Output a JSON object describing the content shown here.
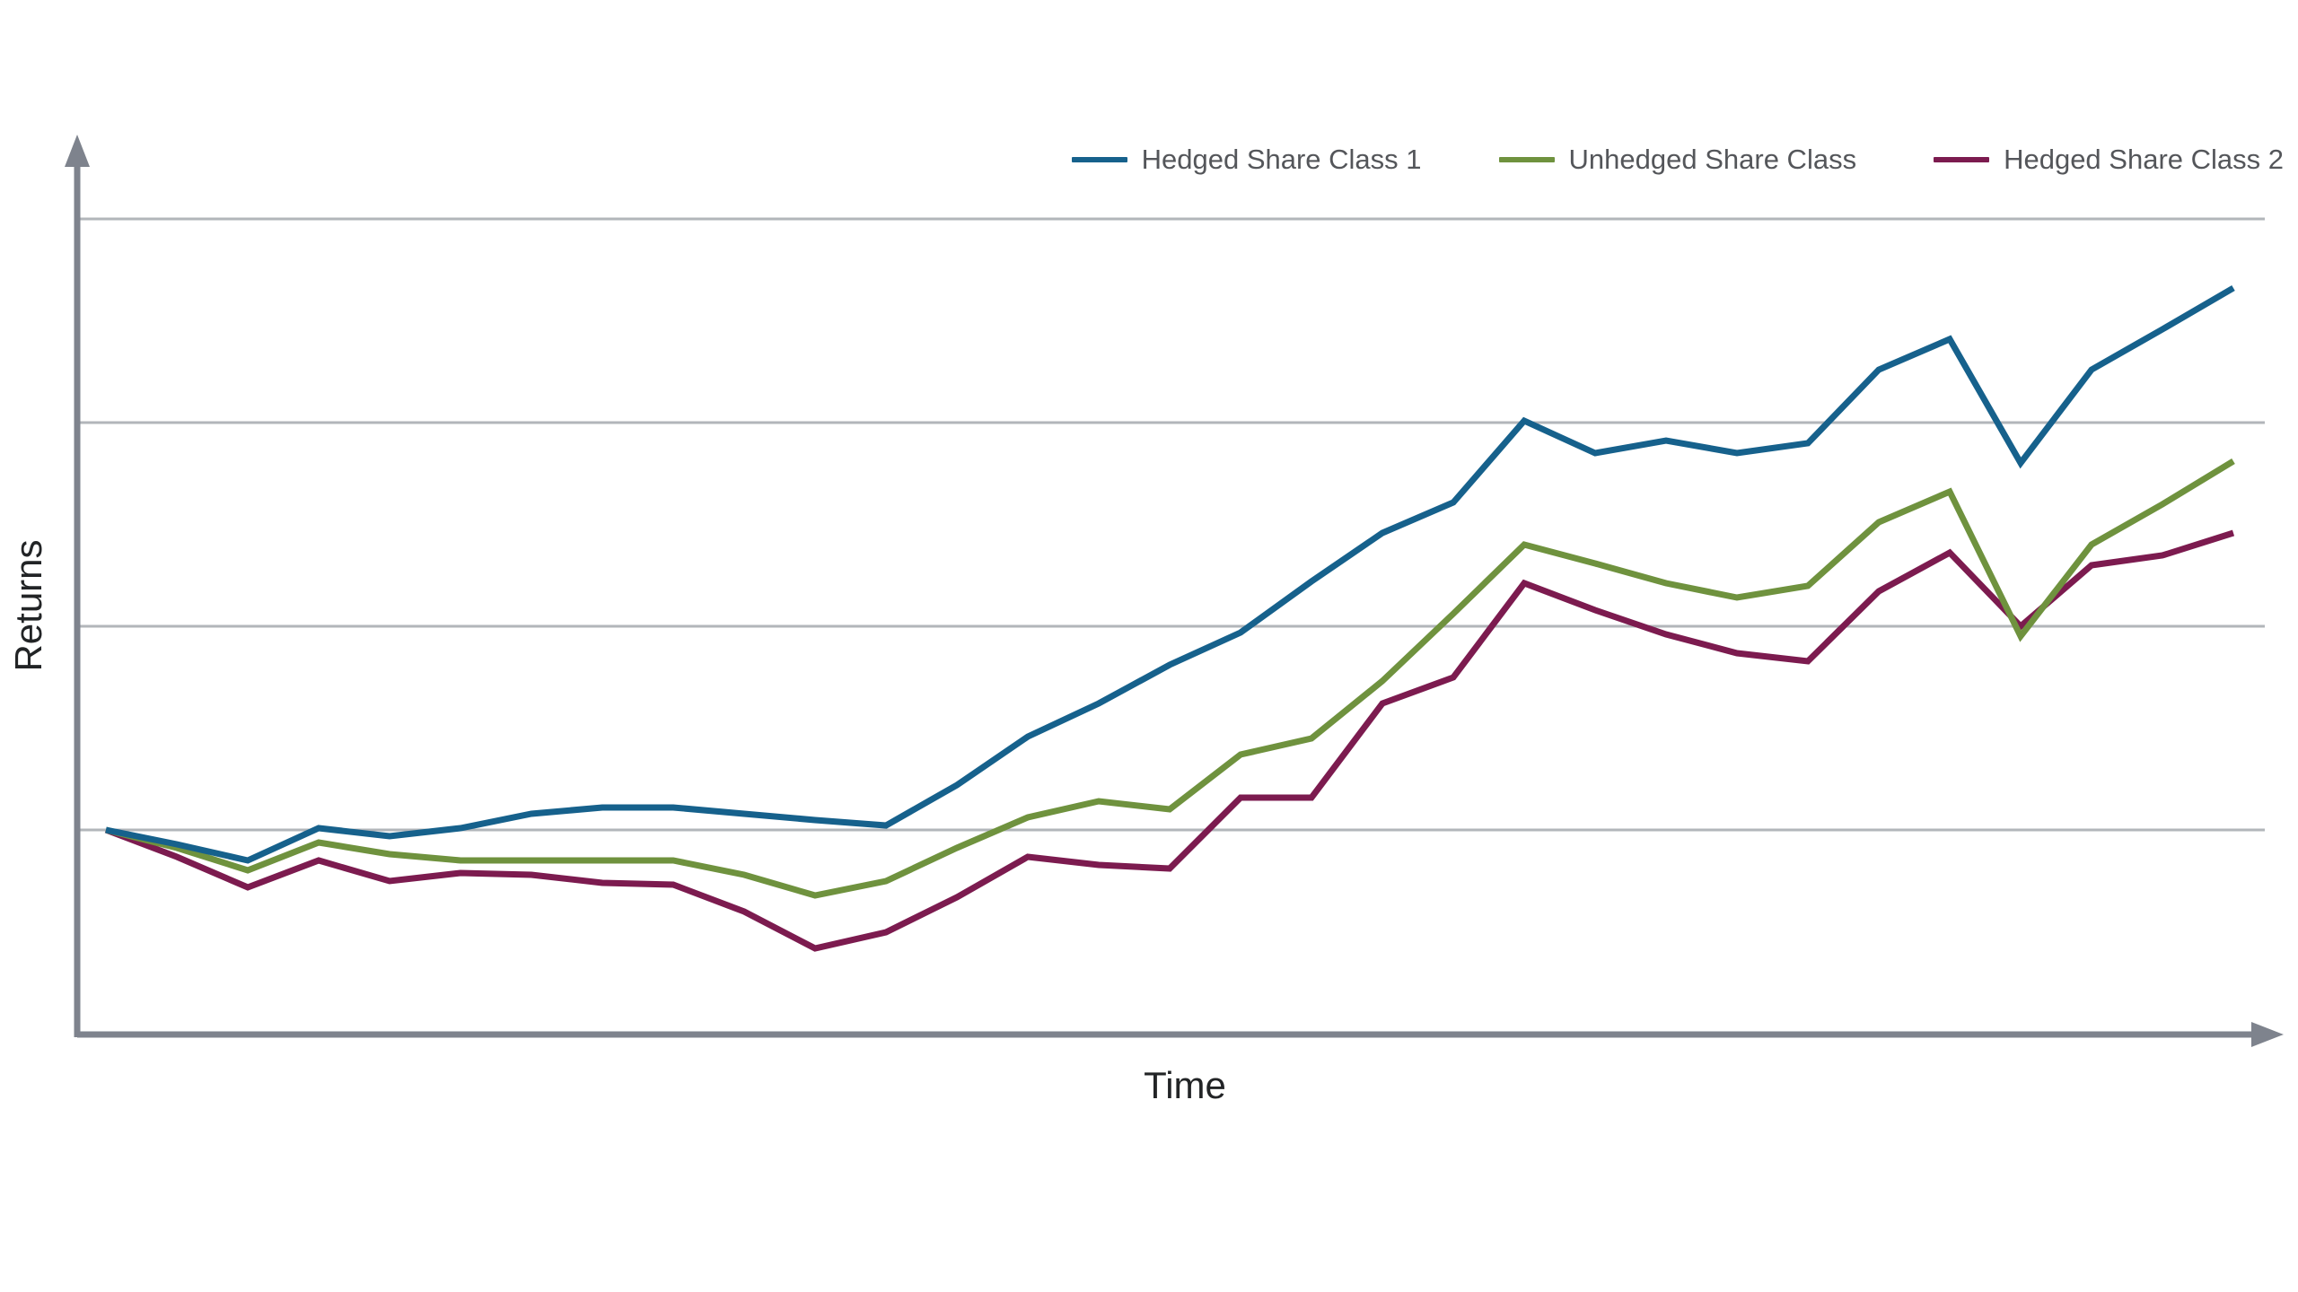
{
  "chart_data": {
    "type": "line",
    "title": "",
    "xlabel": "Time",
    "ylabel": "Returns",
    "x": [
      0,
      1,
      2,
      3,
      4,
      5,
      6,
      7,
      8,
      9,
      10,
      11,
      12,
      13,
      14,
      15,
      16,
      17,
      18,
      19,
      20,
      21,
      22,
      23,
      24,
      25,
      26,
      27,
      28,
      29,
      30
    ],
    "series": [
      {
        "name": "Hedged Share Class 1",
        "color": "#16618c",
        "values": [
          0,
          -0.07,
          -0.15,
          0.01,
          -0.03,
          0.01,
          0.08,
          0.11,
          0.11,
          0.08,
          0.05,
          0.02,
          0.22,
          0.46,
          0.62,
          0.81,
          0.97,
          1.22,
          1.46,
          1.61,
          2.01,
          1.85,
          1.91,
          1.85,
          1.9,
          2.26,
          2.41,
          1.8,
          2.26,
          2.46,
          2.66
        ]
      },
      {
        "name": "Unhedged Share Class",
        "color": "#6f923e",
        "values": [
          0,
          -0.09,
          -0.2,
          -0.06,
          -0.12,
          -0.15,
          -0.15,
          -0.15,
          -0.15,
          -0.22,
          -0.32,
          -0.25,
          -0.09,
          0.06,
          0.14,
          0.1,
          0.37,
          0.45,
          0.73,
          1.06,
          1.4,
          1.31,
          1.21,
          1.14,
          1.2,
          1.51,
          1.66,
          0.95,
          1.4,
          1.6,
          1.81
        ]
      },
      {
        "name": "Hedged Share Class 2",
        "color": "#7c1b4f",
        "values": [
          0,
          -0.13,
          -0.28,
          -0.15,
          -0.25,
          -0.21,
          -0.22,
          -0.26,
          -0.27,
          -0.4,
          -0.58,
          -0.5,
          -0.33,
          -0.13,
          -0.17,
          -0.19,
          0.16,
          0.16,
          0.62,
          0.75,
          1.21,
          1.08,
          0.96,
          0.87,
          0.83,
          1.17,
          1.36,
          1.0,
          1.3,
          1.35,
          1.46
        ]
      }
    ],
    "ylim": [
      -1.0,
      3.0
    ],
    "gridline_values": [
      3,
      2,
      1,
      0
    ],
    "grid": "horizontal-only",
    "tick_labels": "none (illustrative axes with arrowheads)",
    "legend_position": "top-right"
  },
  "axes": {
    "y_label": "Returns",
    "x_label": "Time"
  },
  "legend": {
    "items": [
      {
        "label": "Hedged Share Class 1",
        "color": "#16618c"
      },
      {
        "label": "Unhedged Share Class",
        "color": "#6f923e"
      },
      {
        "label": "Hedged Share Class 2",
        "color": "#7c1b4f"
      }
    ]
  },
  "style_colors": {
    "gridline": "#b2b6ba",
    "axis": "#7e838d",
    "label_text": "#222426",
    "legend_text": "#54565a",
    "background": "#ffffff"
  }
}
